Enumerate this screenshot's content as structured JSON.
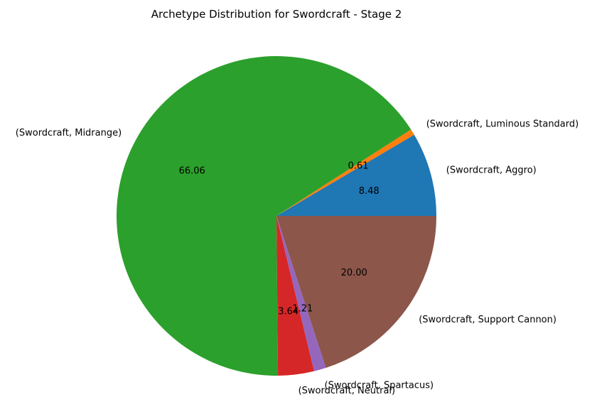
{
  "chart_data": {
    "type": "pie",
    "title": "Archetype Distribution for Swordcraft - Stage 2",
    "slices": [
      {
        "label": "(Swordcraft, Aggro)",
        "value": 8.48,
        "pct_label": "8.48",
        "color": "#1f77b4"
      },
      {
        "label": "(Swordcraft, Luminous Standard)",
        "value": 0.61,
        "pct_label": "0.61",
        "color": "#ff7f0e"
      },
      {
        "label": "(Swordcraft, Midrange)",
        "value": 66.06,
        "pct_label": "66.06",
        "color": "#2ca02c"
      },
      {
        "label": "(Swordcraft, Neutral)",
        "value": 3.64,
        "pct_label": "3.64",
        "color": "#d62728"
      },
      {
        "label": "(Swordcraft, Spartacus)",
        "value": 1.21,
        "pct_label": "1.21",
        "color": "#9467bd"
      },
      {
        "label": "(Swordcraft, Support Cannon)",
        "value": 20.0,
        "pct_label": "20.00",
        "color": "#8c564b"
      }
    ],
    "start_angle_deg": 0,
    "direction": "counterclockwise",
    "legend": "none"
  }
}
